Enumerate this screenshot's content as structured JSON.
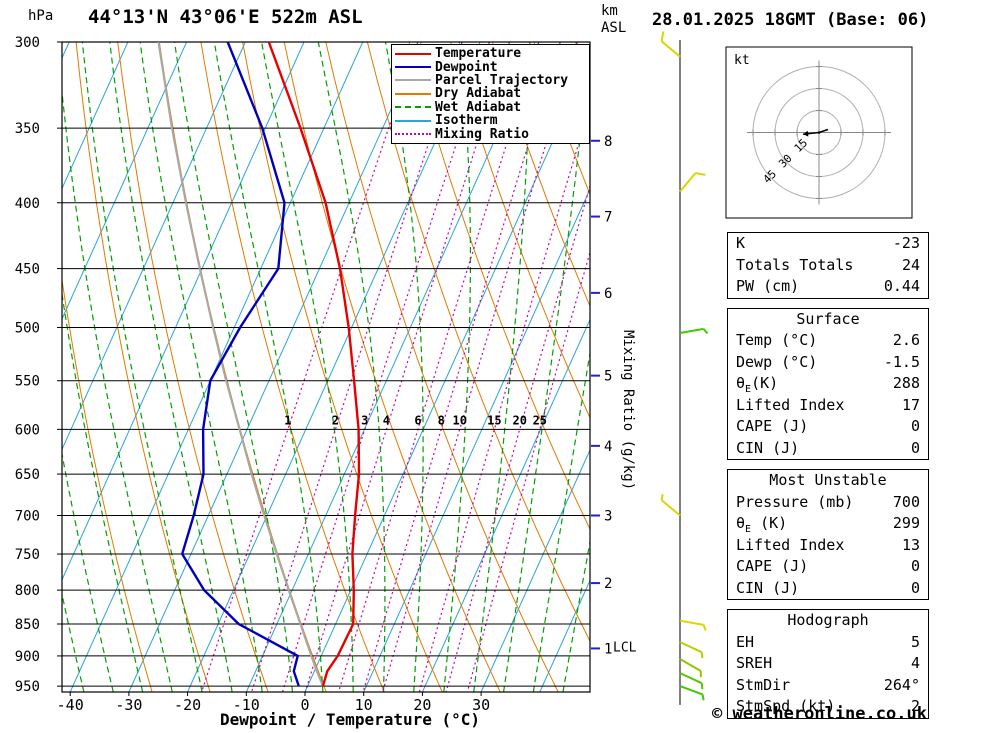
{
  "header": {
    "station": "44°13'N 43°06'E 522m ASL",
    "datetime": "28.01.2025 18GMT (Base: 06)",
    "pressure_unit": "hPa",
    "km_label": "km",
    "asl_label": "ASL"
  },
  "legend": [
    {
      "label": "Temperature",
      "color": "#e60000",
      "style": "solid"
    },
    {
      "label": "Dewpoint",
      "color": "#0000bb",
      "style": "solid"
    },
    {
      "label": "Parcel Trajectory",
      "color": "#a8a8a8",
      "style": "solid"
    },
    {
      "label": "Dry Adiabat",
      "color": "#e07b00",
      "style": "solid"
    },
    {
      "label": "Wet Adiabat",
      "color": "#00a000",
      "style": "dashed"
    },
    {
      "label": "Isotherm",
      "color": "#2aa4dc",
      "style": "solid"
    },
    {
      "label": "Mixing Ratio",
      "color": "#cc00aa",
      "style": "dotted"
    }
  ],
  "chart_data": {
    "type": "skewt_log_p",
    "xlabel": "Dewpoint / Temperature (°C)",
    "x_ticks": [
      -40,
      -30,
      -20,
      -10,
      0,
      10,
      20,
      30
    ],
    "pressure_ticks": [
      300,
      350,
      400,
      450,
      500,
      550,
      600,
      650,
      700,
      750,
      800,
      850,
      900,
      950
    ],
    "pressure_range": [
      300,
      960
    ],
    "km_ticks": [
      {
        "km": 8,
        "p": 358
      },
      {
        "km": 7,
        "p": 410
      },
      {
        "km": 6,
        "p": 470
      },
      {
        "km": 5,
        "p": 545
      },
      {
        "km": 4,
        "p": 618
      },
      {
        "km": 3,
        "p": 700
      },
      {
        "km": 2,
        "p": 790
      },
      {
        "km": 1,
        "p": 888
      }
    ],
    "lcl": {
      "label": "LCL",
      "p": 885
    },
    "mixing_ratio_axis_label": "Mixing Ratio (g/kg)",
    "mixing_ratio_g_kg": [
      1,
      2,
      3,
      4,
      6,
      8,
      10,
      15,
      20,
      25
    ],
    "isotherm_step_c": 10,
    "dry_adiabat_theta_k": [
      250,
      440,
      10
    ],
    "wet_adiabat_start_c": [
      -60,
      45,
      5
    ],
    "sounding": {
      "pressure_hpa": [
        950,
        925,
        900,
        850,
        800,
        750,
        700,
        650,
        600,
        550,
        500,
        450,
        400,
        350,
        300
      ],
      "temperature_c": [
        2.6,
        2.2,
        2.8,
        3.0,
        0.5,
        -2.5,
        -5.0,
        -7.5,
        -11.0,
        -15.5,
        -20.5,
        -26.5,
        -34.0,
        -44.0,
        -56.0
      ],
      "dewpoint_c": [
        -1.5,
        -3.5,
        -4.0,
        -16.5,
        -25.0,
        -31.5,
        -32.5,
        -34.0,
        -37.5,
        -40.0,
        -39.0,
        -37.0,
        -41.0,
        -50.5,
        -63.0
      ],
      "parcel_c": [
        2.6,
        0.4,
        -1.7,
        -6.0,
        -10.6,
        -15.4,
        -20.5,
        -25.8,
        -31.3,
        -37.3,
        -43.6,
        -50.4,
        -57.8,
        -65.9,
        -74.8
      ]
    },
    "wind_barbs": [
      {
        "p": 308,
        "dir": 310,
        "spd": 10,
        "color": "#d8d800"
      },
      {
        "p": 392,
        "dir": 40,
        "spd": 10,
        "color": "#d8d800"
      },
      {
        "p": 505,
        "dir": 80,
        "spd": 5,
        "color": "#44c800"
      },
      {
        "p": 700,
        "dir": 310,
        "spd": 5,
        "color": "#d8d800"
      },
      {
        "p": 845,
        "dir": 100,
        "spd": 5,
        "color": "#d8d800"
      },
      {
        "p": 878,
        "dir": 115,
        "spd": 5,
        "color": "#b8d000"
      },
      {
        "p": 905,
        "dir": 120,
        "spd": 5,
        "color": "#8cc800"
      },
      {
        "p": 928,
        "dir": 115,
        "spd": 5,
        "color": "#5ac400"
      },
      {
        "p": 950,
        "dir": 110,
        "spd": 5,
        "color": "#44c800"
      }
    ]
  },
  "hodograph": {
    "unit_label": "kt",
    "ring_labels_kt": [
      15,
      30,
      45
    ],
    "storm_dir_deg": 264,
    "storm_speed_kt": 2
  },
  "tables": [
    {
      "id": "indices",
      "rows": [
        [
          "K",
          "-23"
        ],
        [
          "Totals Totals",
          "24"
        ],
        [
          "PW (cm)",
          "0.44"
        ]
      ]
    },
    {
      "id": "surface",
      "title": "Surface",
      "rows": [
        [
          "Temp (°C)",
          "2.6"
        ],
        [
          "Dewp (°C)",
          "-1.5"
        ],
        [
          "θE(K)",
          "288"
        ],
        [
          "Lifted Index",
          "17"
        ],
        [
          "CAPE (J)",
          "0"
        ],
        [
          "CIN (J)",
          "0"
        ]
      ]
    },
    {
      "id": "most-unstable",
      "title": "Most Unstable",
      "rows": [
        [
          "Pressure (mb)",
          "700"
        ],
        [
          "θE (K)",
          "299"
        ],
        [
          "Lifted Index",
          "13"
        ],
        [
          "CAPE (J)",
          "0"
        ],
        [
          "CIN (J)",
          "0"
        ]
      ]
    },
    {
      "id": "hodograph",
      "title": "Hodograph",
      "rows": [
        [
          "EH",
          "5"
        ],
        [
          "SREH",
          "4"
        ],
        [
          "StmDir",
          "264°"
        ],
        [
          "StmSpd (kt)",
          "2"
        ]
      ]
    }
  ],
  "footer": {
    "copyright": "© weatheronline.co.uk"
  }
}
